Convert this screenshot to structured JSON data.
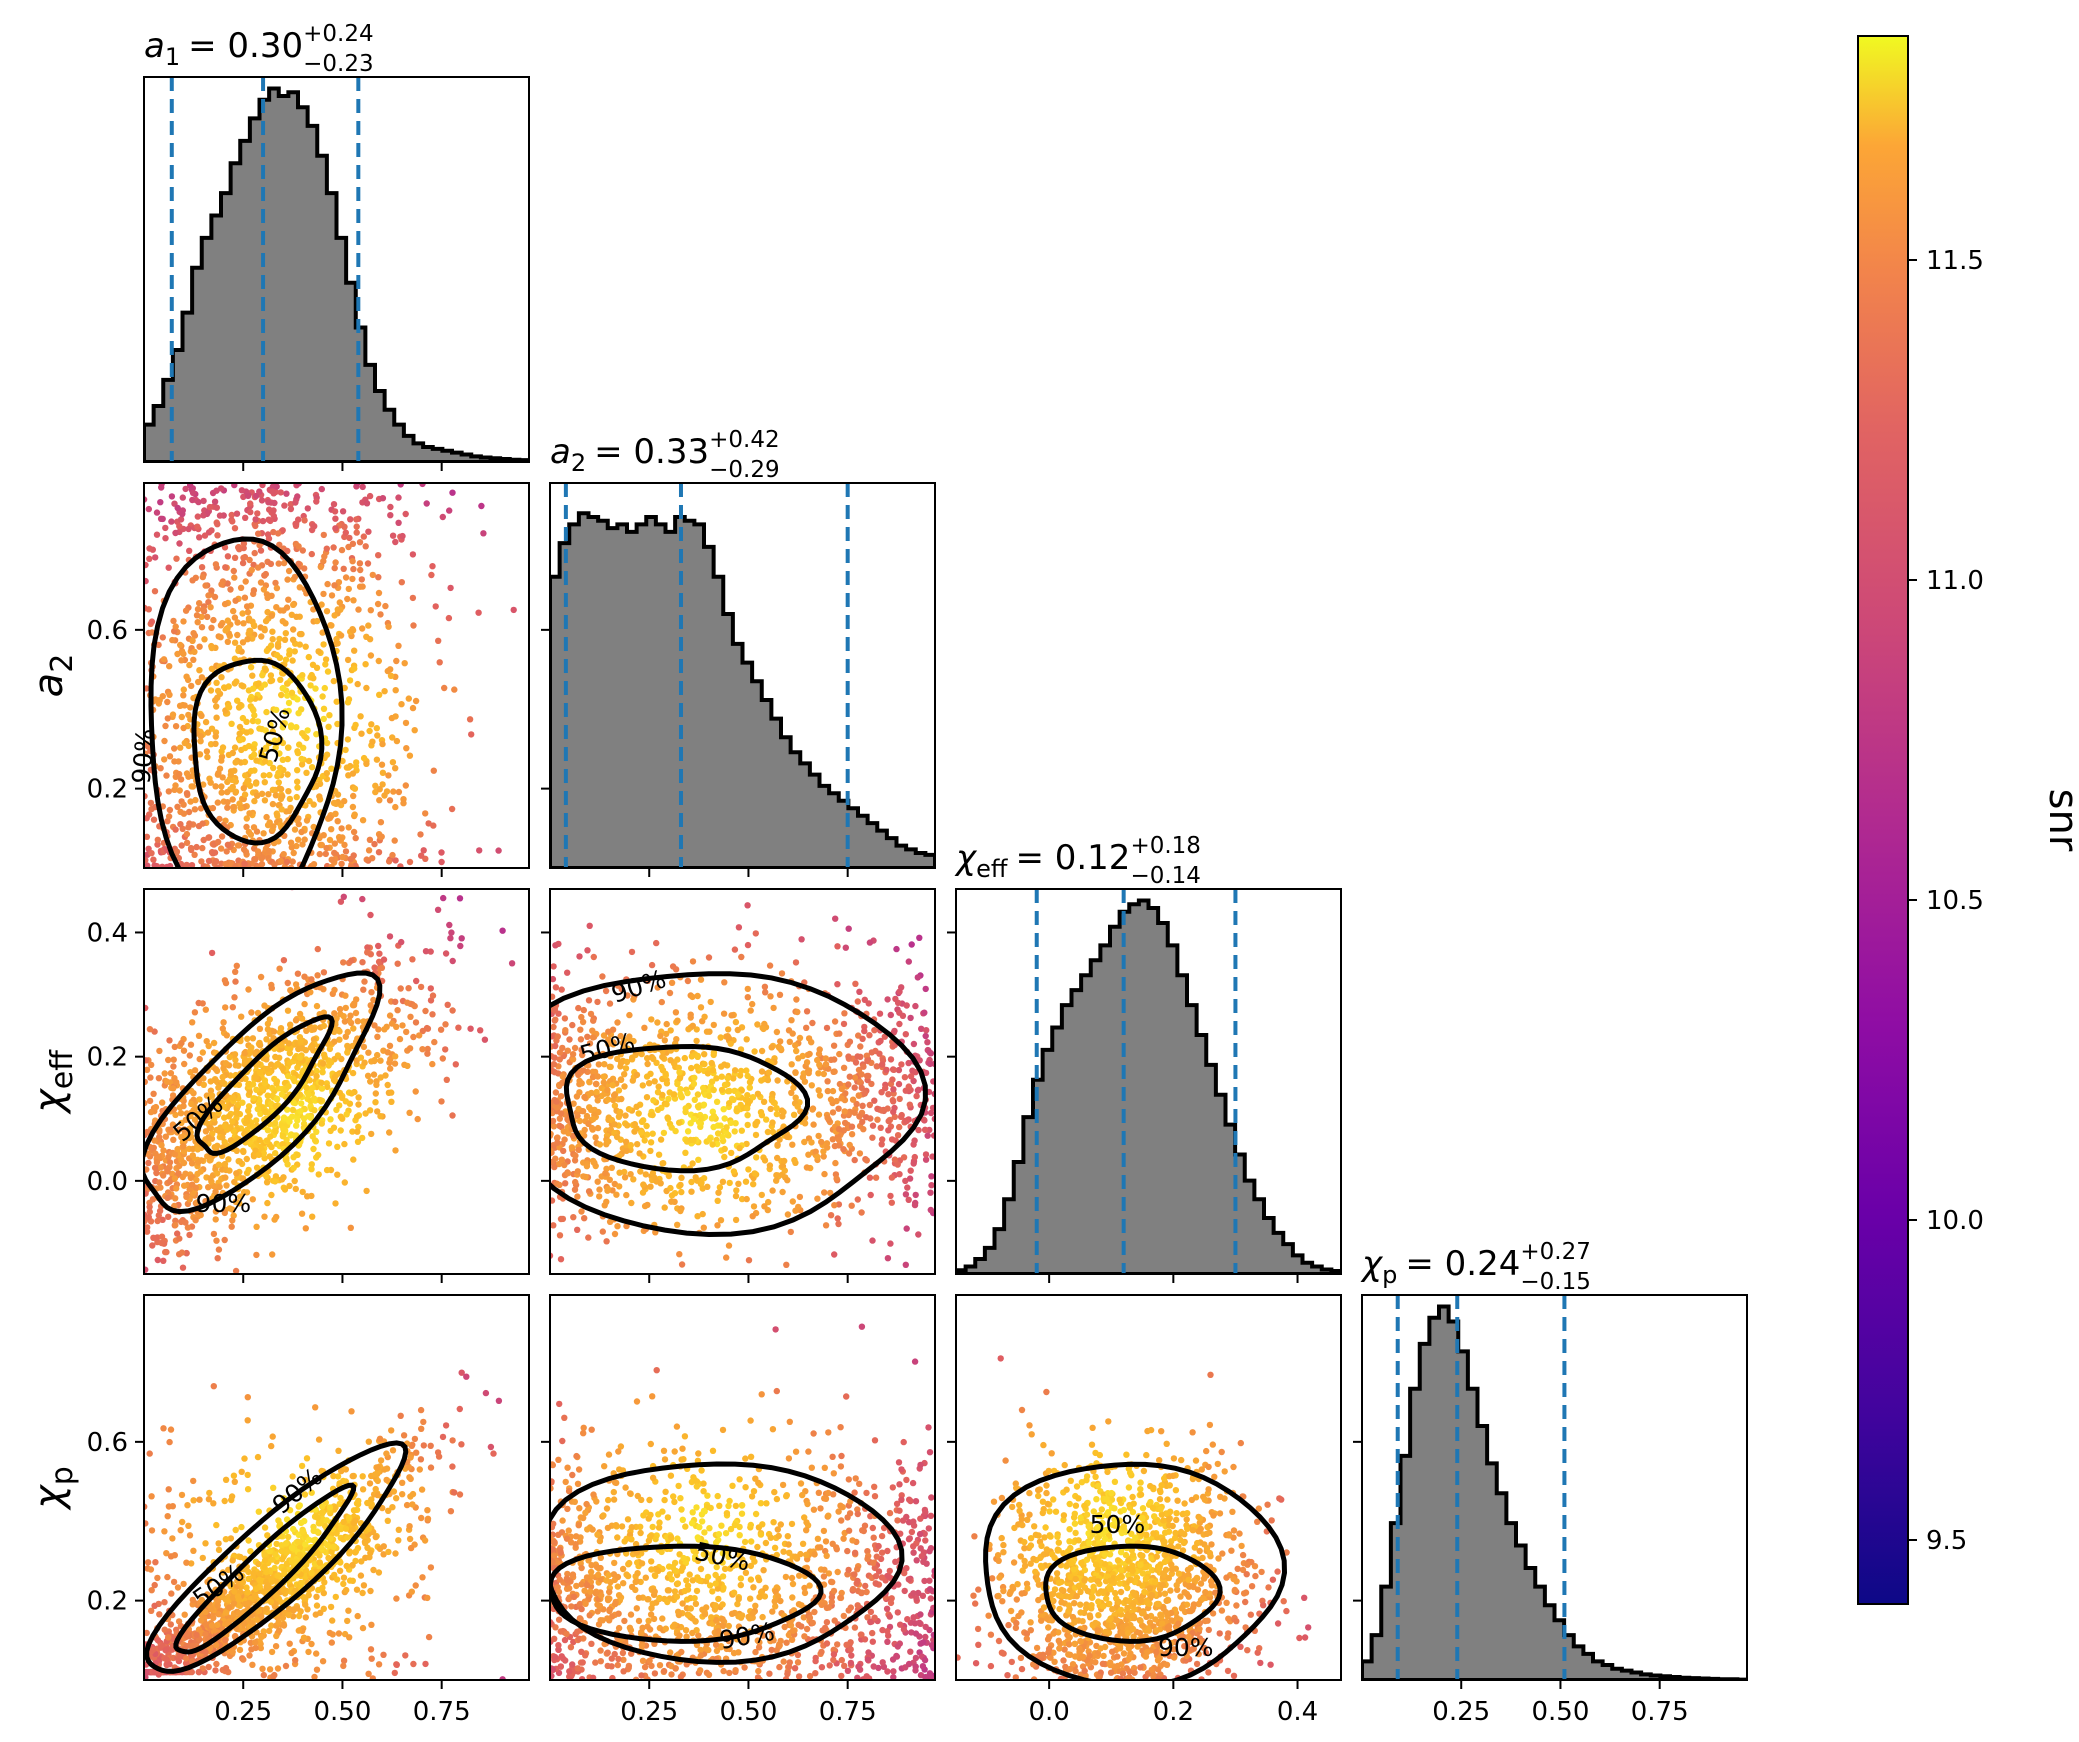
{
  "chart_data": {
    "type": "corner",
    "parameters": [
      {
        "key": "a1",
        "label_main": "a",
        "label_sub": "1",
        "median": 0.3,
        "plus": 0.24,
        "minus": 0.23,
        "title": {
          "lhs_main": "a",
          "lhs_sub": "1",
          "value": "= 0.30",
          "sup": "+0.24",
          "sub": "−0.23"
        },
        "quantiles": [
          0.07,
          0.3,
          0.54
        ],
        "range": [
          0.0,
          0.97
        ],
        "ticks": [
          0.25,
          0.5,
          0.75
        ],
        "tick_labels": [
          "0.25",
          "0.50",
          "0.75"
        ],
        "hist": [
          0.1,
          0.15,
          0.22,
          0.3,
          0.4,
          0.52,
          0.6,
          0.66,
          0.72,
          0.8,
          0.86,
          0.92,
          0.97,
          1.0,
          0.98,
          0.99,
          0.95,
          0.9,
          0.82,
          0.72,
          0.6,
          0.48,
          0.36,
          0.26,
          0.19,
          0.14,
          0.1,
          0.07,
          0.05,
          0.04,
          0.035,
          0.03,
          0.025,
          0.02,
          0.015,
          0.012,
          0.01,
          0.008,
          0.006,
          0.005
        ]
      },
      {
        "key": "a2",
        "label_main": "a",
        "label_sub": "2",
        "median": 0.33,
        "plus": 0.42,
        "minus": 0.29,
        "title": {
          "lhs_main": "a",
          "lhs_sub": "2",
          "value": "= 0.33",
          "sup": "+0.42",
          "sub": "−0.29"
        },
        "quantiles": [
          0.04,
          0.33,
          0.75
        ],
        "range": [
          0.0,
          0.97
        ],
        "ticks": [
          0.25,
          0.5,
          0.75
        ],
        "tick_labels": [
          "0.25",
          "0.50",
          "0.75"
        ],
        "hist": [
          0.78,
          0.87,
          0.92,
          0.95,
          0.94,
          0.93,
          0.91,
          0.92,
          0.9,
          0.92,
          0.94,
          0.92,
          0.9,
          0.94,
          0.93,
          0.92,
          0.86,
          0.78,
          0.68,
          0.6,
          0.55,
          0.5,
          0.45,
          0.4,
          0.35,
          0.31,
          0.28,
          0.25,
          0.22,
          0.2,
          0.18,
          0.16,
          0.14,
          0.12,
          0.1,
          0.08,
          0.06,
          0.05,
          0.04,
          0.035
        ]
      },
      {
        "key": "chi_eff",
        "label_main": "χ",
        "label_sub": "eff",
        "median": 0.12,
        "plus": 0.18,
        "minus": 0.14,
        "title": {
          "lhs_main": "χ",
          "lhs_sub": "eff",
          "value": "= 0.12",
          "sup": "+0.18",
          "sub": "−0.14"
        },
        "quantiles": [
          -0.02,
          0.12,
          0.3
        ],
        "range": [
          -0.15,
          0.47
        ],
        "ticks": [
          0.0,
          0.2,
          0.4
        ],
        "tick_labels": [
          "0.0",
          "0.2",
          "0.4"
        ],
        "hist": [
          0.01,
          0.02,
          0.04,
          0.07,
          0.12,
          0.2,
          0.3,
          0.42,
          0.52,
          0.6,
          0.66,
          0.72,
          0.76,
          0.8,
          0.84,
          0.88,
          0.93,
          0.97,
          0.99,
          1.0,
          0.98,
          0.94,
          0.88,
          0.8,
          0.72,
          0.64,
          0.56,
          0.48,
          0.4,
          0.32,
          0.25,
          0.2,
          0.15,
          0.11,
          0.08,
          0.05,
          0.03,
          0.02,
          0.012,
          0.008
        ]
      },
      {
        "key": "chi_p",
        "label_main": "χ",
        "label_sub": "p",
        "median": 0.24,
        "plus": 0.27,
        "minus": 0.15,
        "title": {
          "lhs_main": "χ",
          "lhs_sub": "p",
          "value": "= 0.24",
          "sup": "+0.27",
          "sub": "−0.15"
        },
        "quantiles": [
          0.09,
          0.24,
          0.51
        ],
        "range": [
          0.0,
          0.97
        ],
        "ticks": [
          0.25,
          0.5,
          0.75
        ],
        "tick_labels": [
          "0.25",
          "0.50",
          "0.75"
        ],
        "hist": [
          0.05,
          0.12,
          0.25,
          0.42,
          0.6,
          0.78,
          0.9,
          0.97,
          1.0,
          0.96,
          0.88,
          0.78,
          0.68,
          0.58,
          0.5,
          0.42,
          0.36,
          0.3,
          0.25,
          0.2,
          0.16,
          0.12,
          0.09,
          0.07,
          0.05,
          0.04,
          0.03,
          0.025,
          0.02,
          0.015,
          0.012,
          0.01,
          0.008,
          0.006,
          0.005,
          0.004,
          0.003,
          0.002,
          0.002,
          0.001
        ]
      }
    ],
    "row_ticks": {
      "a2": {
        "ticks": [
          0.2,
          0.6
        ],
        "tick_labels": [
          "0.2",
          "0.6"
        ]
      },
      "chi_eff": {
        "ticks": [
          0.0,
          0.2,
          0.4
        ],
        "tick_labels": [
          "0.0",
          "0.2",
          "0.4"
        ]
      },
      "chi_p": {
        "ticks": [
          0.2,
          0.6
        ],
        "tick_labels": [
          "0.2",
          "0.6"
        ]
      }
    },
    "contour_levels": [
      "50%",
      "90%"
    ],
    "colorbar": {
      "label": "snr",
      "range": [
        9.4,
        11.85
      ],
      "ticks": [
        9.5,
        10.0,
        10.5,
        11.0,
        11.5
      ],
      "tick_labels": [
        "9.5",
        "10.0",
        "10.5",
        "11.0",
        "11.5"
      ],
      "colormap": "plasma"
    },
    "colors": {
      "hist_fill": "#808080",
      "quantile_line": "#1f77b4",
      "contour": "#000000"
    }
  }
}
